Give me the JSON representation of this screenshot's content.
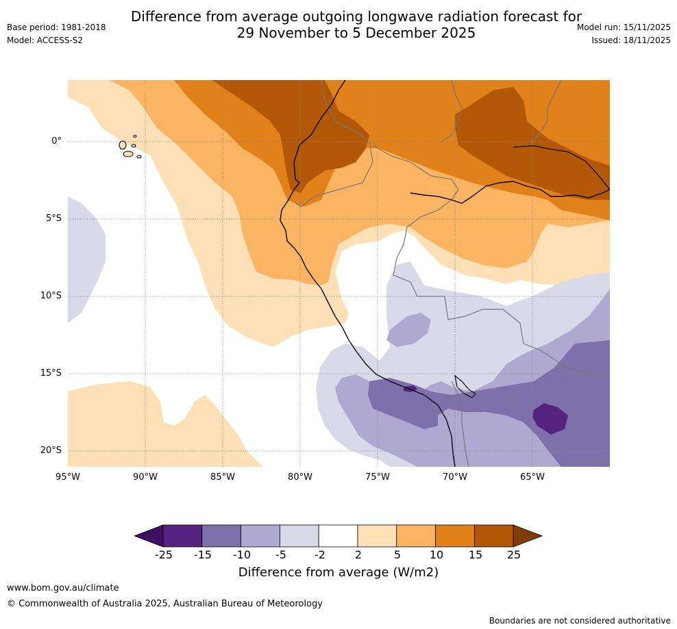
{
  "header": {
    "title_line1": "Difference from average outgoing longwave radiation forecast for",
    "title_line2": "29 November to 5 December 2025",
    "base_period": "Base period: 1981-2018",
    "model": "Model: ACCESS-S2",
    "model_run": "Model run: 15/11/2025",
    "issued": "Issued: 18/11/2025"
  },
  "map": {
    "lat_labels": [
      "0°",
      "5°S",
      "10°S",
      "15°S",
      "20°S"
    ],
    "lon_labels": [
      "95°W",
      "90°W",
      "85°W",
      "80°W",
      "75°W",
      "70°W",
      "65°W"
    ]
  },
  "colorbar": {
    "title": "Difference from average (W/m2)",
    "tick_labels": [
      "-25",
      "-15",
      "-10",
      "-5",
      "-2",
      "2",
      "5",
      "10",
      "15",
      "25"
    ],
    "colors": [
      "#3f0f62",
      "#54237f",
      "#7e70aa",
      "#afa8d1",
      "#d9d9ea",
      "#ffffff",
      "#fde0b6",
      "#fbb462",
      "#e0811a",
      "#b35806",
      "#7f3b08"
    ]
  },
  "footer": {
    "website": "www.bom.gov.au/climate",
    "copyright": "© Commonwealth of Australia 2025, Australian Bureau of Meteorology",
    "disclaimer": "Boundaries are not considered authoritative"
  }
}
